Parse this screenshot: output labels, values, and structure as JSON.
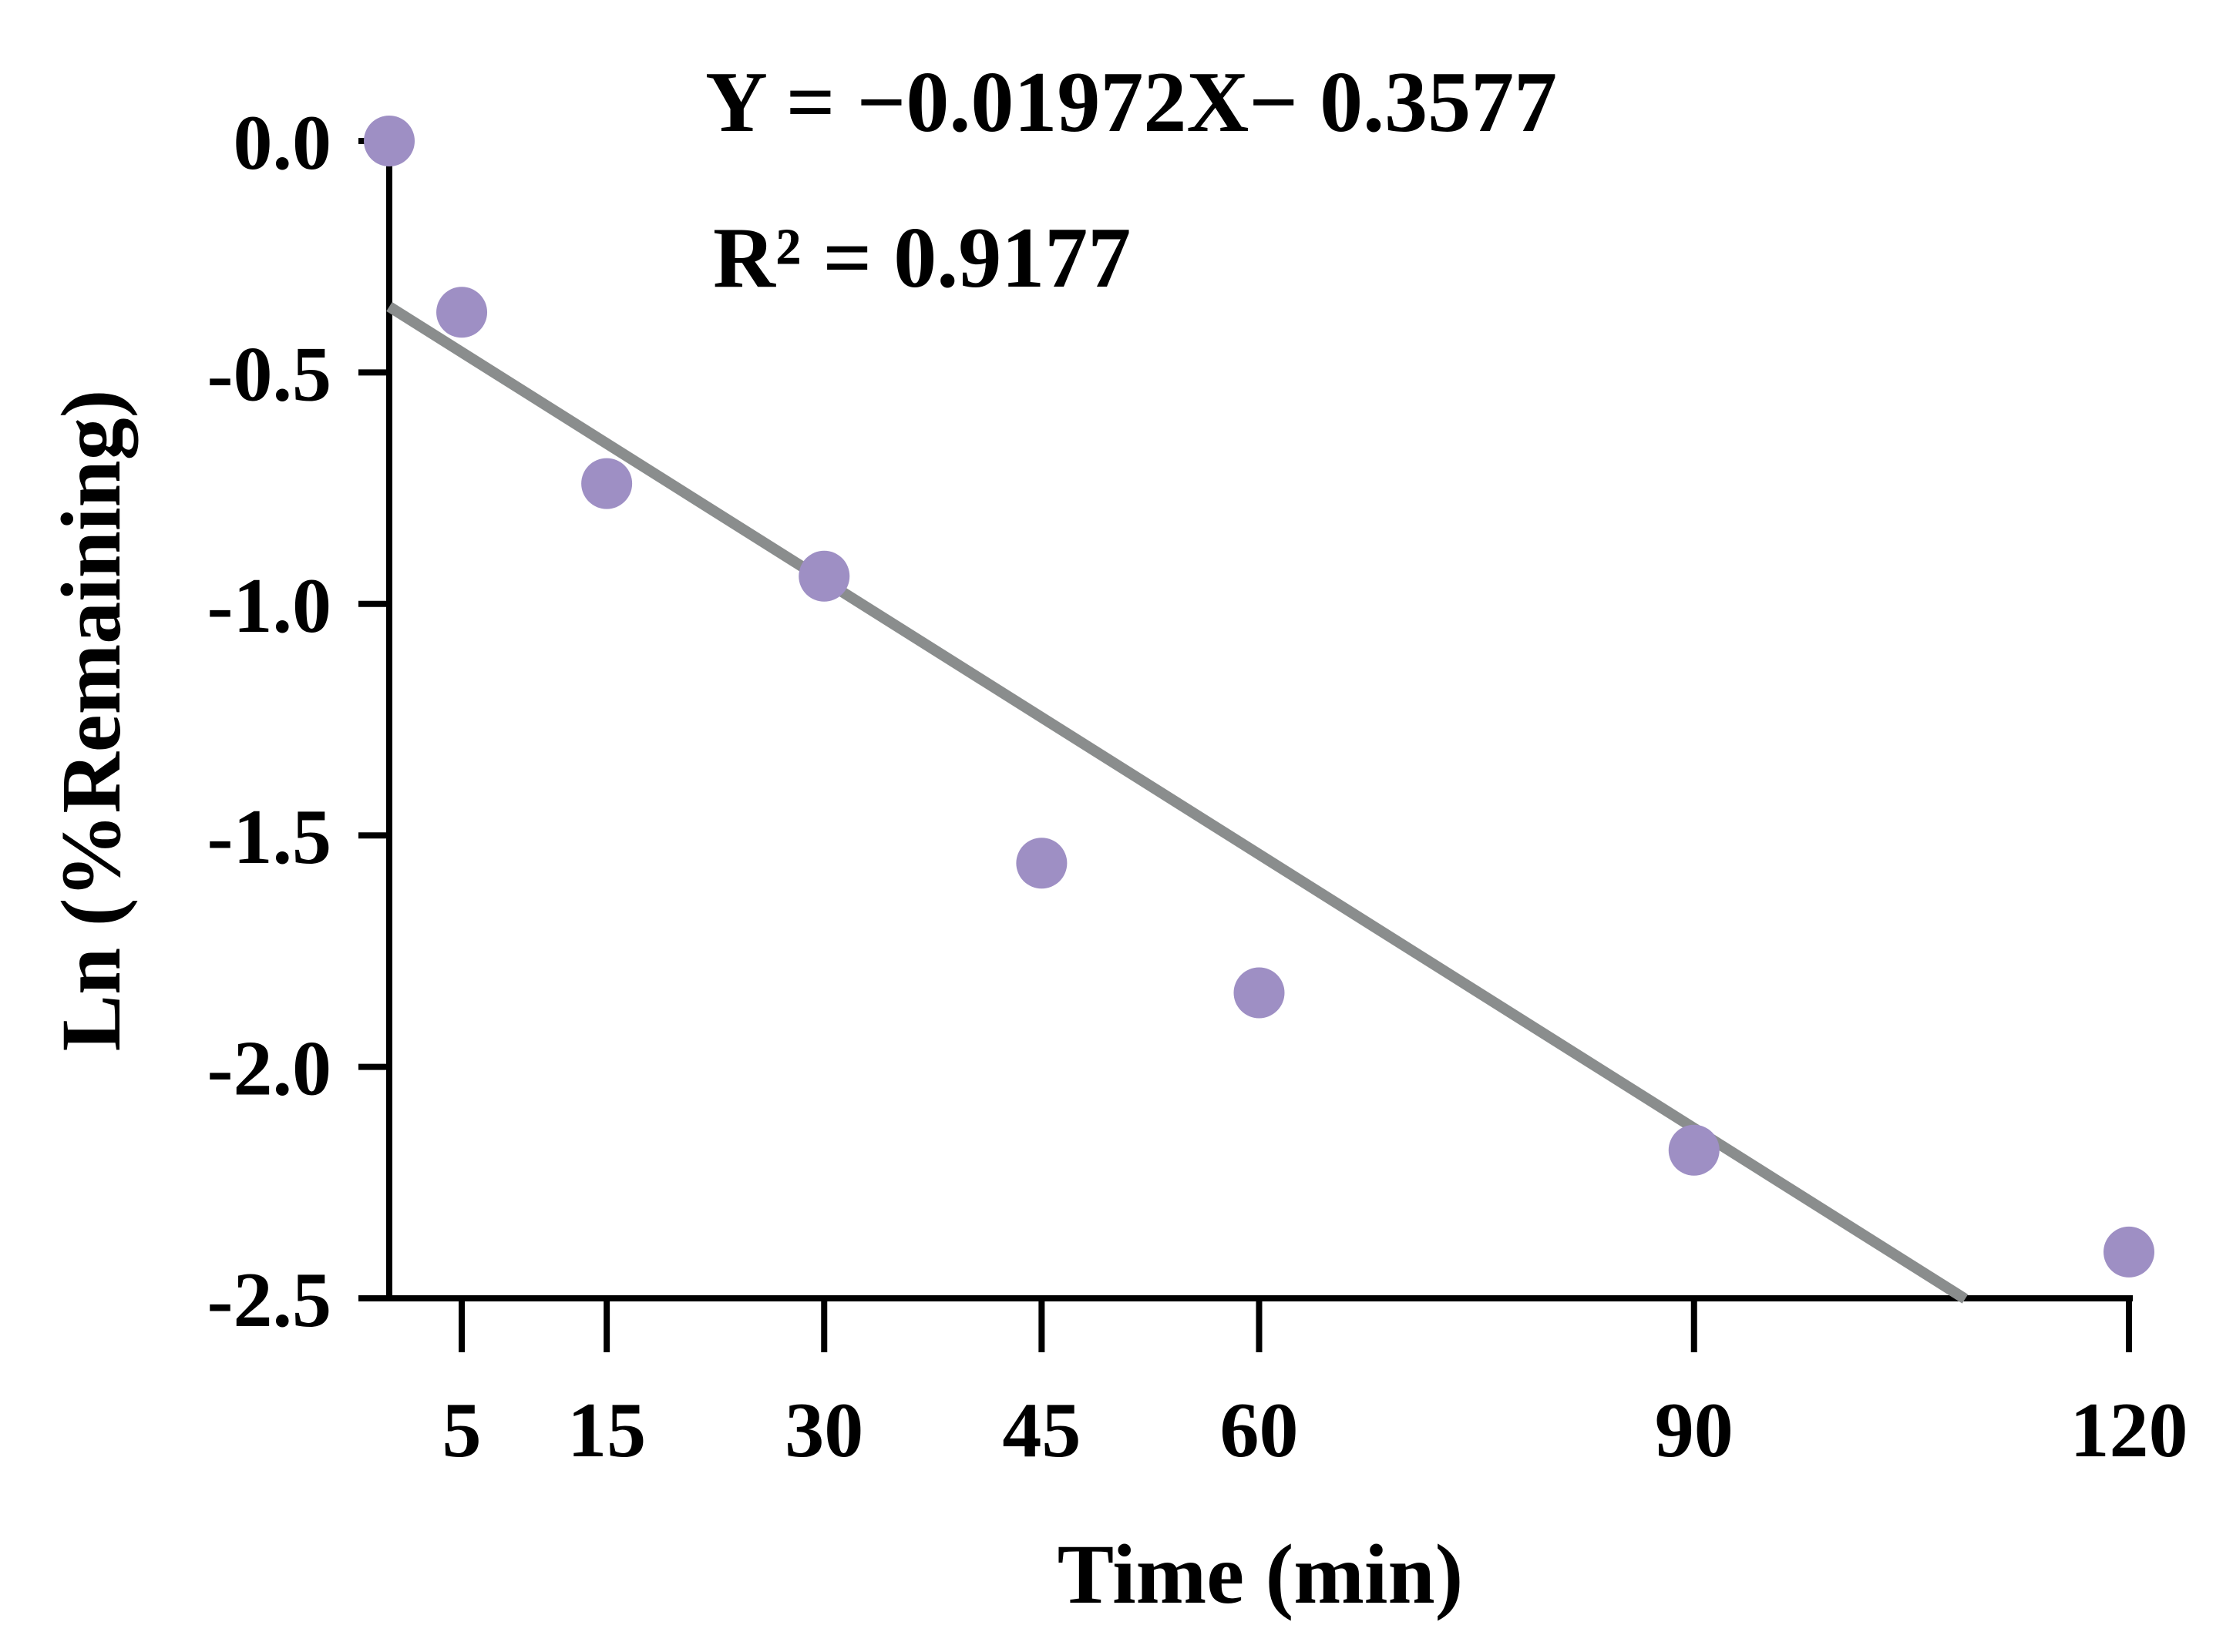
{
  "chart_data": {
    "type": "scatter",
    "xlabel": "Time (min)",
    "ylabel": "Ln (%Remaining)",
    "xlim": [
      0,
      120
    ],
    "ylim": [
      -2.5,
      0.0
    ],
    "x_ticks": [
      5,
      15,
      30,
      45,
      60,
      90,
      120
    ],
    "x_tick_labels": [
      "5",
      "15",
      "30",
      "45",
      "60",
      "90",
      "120"
    ],
    "y_ticks": [
      0.0,
      -0.5,
      -1.0,
      -1.5,
      -2.0,
      -2.5
    ],
    "y_tick_labels": [
      "0.0",
      "-0.5",
      "-1.0",
      "-1.5",
      "-2.0",
      "-2.5"
    ],
    "grid": false,
    "series": [
      {
        "name": "Ln (%Remaining)",
        "x": [
          0,
          5,
          15,
          30,
          45,
          60,
          90,
          120
        ],
        "y": [
          0.0,
          -0.37,
          -0.74,
          -0.94,
          -1.56,
          -1.84,
          -2.18,
          -2.4
        ],
        "color": "#9e8fc4"
      }
    ],
    "fit": {
      "slope": -0.01972,
      "intercept": -0.3577,
      "x_range": [
        0,
        108.7
      ],
      "color": "#8a8d8d"
    },
    "annotations": {
      "equation": "Y = −0.01972X− 0.3577",
      "r_squared": "R² = 0.9177"
    }
  }
}
